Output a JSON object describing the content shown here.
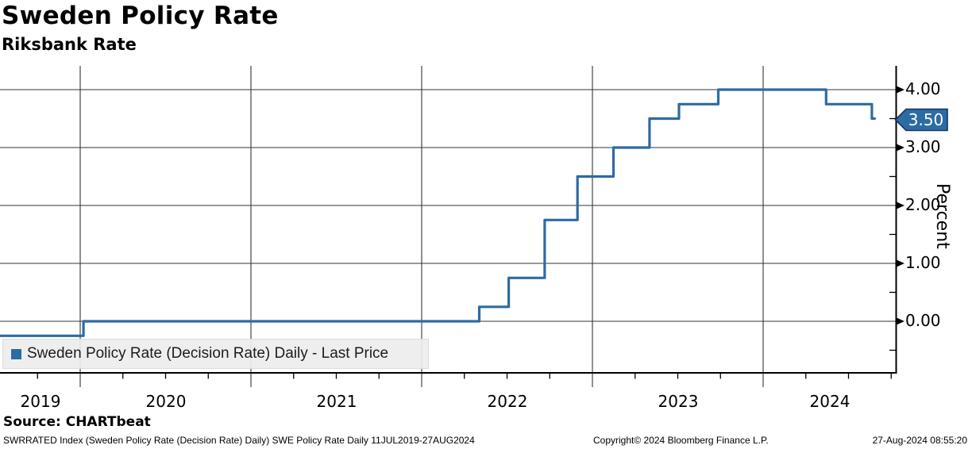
{
  "header": {
    "title": "Sweden Policy Rate",
    "subtitle": "Riksbank Rate"
  },
  "chart_data": {
    "type": "line",
    "line_style": "step-after",
    "title": "Sweden Policy Rate",
    "subtitle": "Riksbank Rate",
    "series": [
      {
        "name": "Sweden Policy Rate (Decision Rate) Daily - Last Price",
        "color": "#2d6ba4",
        "points": [
          [
            "2019-07-11",
            -0.25
          ],
          [
            "2020-01-08",
            0.0
          ],
          [
            "2022-05-04",
            0.25
          ],
          [
            "2022-07-06",
            0.75
          ],
          [
            "2022-09-21",
            1.75
          ],
          [
            "2022-11-30",
            2.5
          ],
          [
            "2023-02-15",
            3.0
          ],
          [
            "2023-05-03",
            3.5
          ],
          [
            "2023-07-05",
            3.75
          ],
          [
            "2023-09-27",
            4.0
          ],
          [
            "2024-05-15",
            3.75
          ],
          [
            "2024-08-21",
            3.5
          ],
          [
            "2024-08-27",
            3.5
          ]
        ]
      }
    ],
    "x_range": [
      "2019-07-11",
      "2024-08-27"
    ],
    "x_tick_years": [
      "2019",
      "2020",
      "2021",
      "2022",
      "2023",
      "2024"
    ],
    "y_ticks": [
      "0.00",
      "1.00",
      "2.00",
      "3.00",
      "4.00"
    ],
    "y_tick_values": [
      0,
      1,
      2,
      3,
      4
    ],
    "y_minor_values": [
      -0.5,
      0.5,
      1.5,
      2.5,
      3.5
    ],
    "ylim": [
      -0.89,
      4.41
    ],
    "ylabel": "Percent",
    "grid": true,
    "legend_position": "bottom-left",
    "last_price": "3.50",
    "badge_fill": "#2d6ba4",
    "badge_border": "#17365d",
    "colors": {
      "grid": "#353535",
      "axis": "#000000",
      "legend_bg": "#ededed"
    }
  },
  "footer": {
    "source": "Source: CHARTbeat",
    "ticker_line": "SWRRATED Index (Sweden Policy Rate (Decision Rate) Daily) SWE Policy Rate  Daily 11JUL2019-27AUG2024",
    "copyright": "Copyright© 2024 Bloomberg Finance L.P.",
    "timestamp": "27-Aug-2024 08:55:20"
  }
}
